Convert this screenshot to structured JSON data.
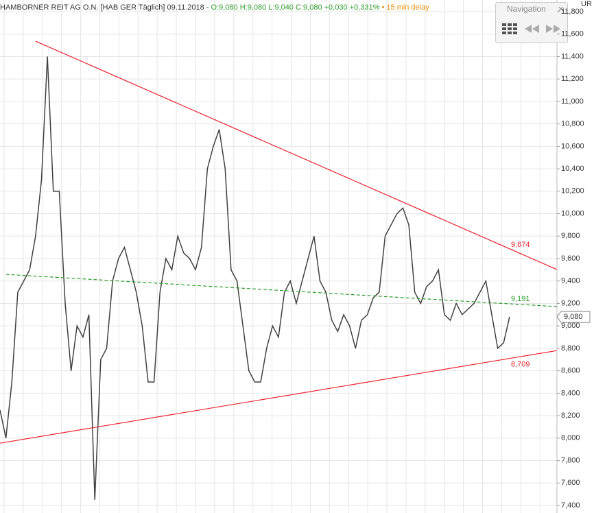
{
  "chart_data": {
    "type": "line",
    "title": "HAMBORNER REIT AG O.N. [HAB GER Täglich] 09.11.2018 -",
    "quote": "O:9,080 H:9,080 L:9,040 C:9,080 +0,030 +0,331%",
    "delay": "• 15 min delay",
    "unit": "UR",
    "navigation": {
      "title": "Navigation",
      "close": "✕"
    },
    "xlim": [
      0,
      94
    ],
    "ylim": [
      7400,
      11800
    ],
    "yticks": [
      {
        "value": 7400,
        "label": "7,400"
      },
      {
        "value": 7600,
        "label": "7,600"
      },
      {
        "value": 7800,
        "label": "7,800"
      },
      {
        "value": 8000,
        "label": "8,000"
      },
      {
        "value": 8200,
        "label": "8,200"
      },
      {
        "value": 8400,
        "label": "8,400"
      },
      {
        "value": 8600,
        "label": "8,600"
      },
      {
        "value": 8800,
        "label": "8,800"
      },
      {
        "value": 9000,
        "label": "9,000"
      },
      {
        "value": 9200,
        "label": "9,200"
      },
      {
        "value": 9400,
        "label": "9,400"
      },
      {
        "value": 9600,
        "label": "9,600"
      },
      {
        "value": 9800,
        "label": "9,800"
      },
      {
        "value": 10000,
        "label": "10,000"
      },
      {
        "value": 10200,
        "label": "10,200"
      },
      {
        "value": 10400,
        "label": "10,400"
      },
      {
        "value": 10600,
        "label": "10,600"
      },
      {
        "value": 10800,
        "label": "10,800"
      },
      {
        "value": 11000,
        "label": "11,000"
      },
      {
        "value": 11200,
        "label": "11,200"
      },
      {
        "value": 11400,
        "label": "11,400"
      },
      {
        "value": 11600,
        "label": "11,600"
      },
      {
        "value": 11800,
        "label": "11,800"
      }
    ],
    "grid": true,
    "series": [
      {
        "color": "#404040",
        "values": [
          8250,
          8000,
          8500,
          9300,
          9400,
          9500,
          9800,
          10300,
          11400,
          10200,
          10200,
          9200,
          8600,
          9000,
          8900,
          9100,
          7450,
          8700,
          8800,
          9400,
          9600,
          9700,
          9500,
          9300,
          9000,
          8500,
          8500,
          9300,
          9600,
          9500,
          9800,
          9650,
          9600,
          9500,
          9700,
          10400,
          10600,
          10750,
          10400,
          9500,
          9400,
          9000,
          8600,
          8500,
          8500,
          8800,
          9000,
          8900,
          9300,
          9400,
          9200,
          9400,
          9600,
          9800,
          9400,
          9300,
          9050,
          8950,
          9100,
          9000,
          8800,
          9050,
          9100,
          9250,
          9300,
          9800,
          9900,
          10000,
          10050,
          9900,
          9300,
          9200,
          9350,
          9400,
          9500,
          9100,
          9050,
          9200,
          9100,
          9150,
          9200,
          9300,
          9400,
          9100,
          8800,
          8850,
          9080
        ]
      }
    ],
    "last": {
      "value": 9080,
      "label": "9,080"
    },
    "trendlines": [
      {
        "label": "9,674",
        "value": 9674,
        "color": "#e8202a",
        "from": [
          6,
          11537
        ],
        "to": [
          94,
          9502
        ]
      },
      {
        "label": "9,191",
        "value": 9191,
        "color": "#2a9d2a",
        "dashed": true,
        "from": [
          1,
          9459
        ],
        "to": [
          94,
          9172
        ]
      },
      {
        "label": "8,709",
        "value": 8709,
        "color": "#e8202a",
        "from": [
          0,
          7955
        ],
        "to": [
          94,
          8780
        ]
      }
    ]
  }
}
